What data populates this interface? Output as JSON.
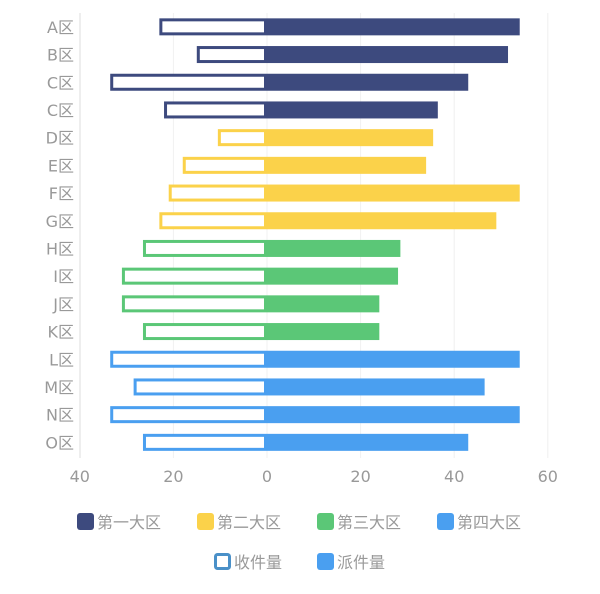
{
  "chart_data": {
    "type": "bar",
    "orientation": "horizontal-diverging",
    "categories": [
      "A区",
      "B区",
      "C区",
      "C区",
      "D区",
      "E区",
      "F区",
      "G区",
      "H区",
      "I区",
      "J区",
      "K区",
      "L区",
      "M区",
      "N区",
      "O区"
    ],
    "groups": [
      {
        "name": "第一大区",
        "color": "#3d4a7e",
        "categories": [
          0,
          1,
          2,
          3
        ]
      },
      {
        "name": "第二大区",
        "color": "#fbd24a",
        "categories": [
          4,
          5,
          6,
          7
        ]
      },
      {
        "name": "第三大区",
        "color": "#5bc777",
        "categories": [
          8,
          9,
          10,
          11
        ]
      },
      {
        "name": "第四大区",
        "color": "#4a9ff0",
        "categories": [
          12,
          13,
          14,
          15
        ]
      }
    ],
    "series": [
      {
        "name": "收件量",
        "style": "outline",
        "direction": "left",
        "legend_color": "#4a90c8",
        "values": [
          23,
          15,
          33.5,
          22,
          10.5,
          18,
          21,
          23,
          26.5,
          31,
          31,
          26.5,
          33.5,
          28.5,
          33.5,
          26.5
        ]
      },
      {
        "name": "派件量",
        "style": "filled",
        "direction": "right",
        "legend_color": "#4a9ff0",
        "values": [
          54,
          51.5,
          43,
          36.5,
          35.5,
          34,
          54,
          49,
          28.5,
          28,
          24,
          24,
          54,
          46.5,
          54,
          43
        ]
      }
    ],
    "x_ticks": [
      "40",
      "20",
      "0",
      "20",
      "40",
      "60"
    ],
    "xlim": [
      -40,
      60
    ],
    "grid": true,
    "legend_placement": "bottom"
  }
}
